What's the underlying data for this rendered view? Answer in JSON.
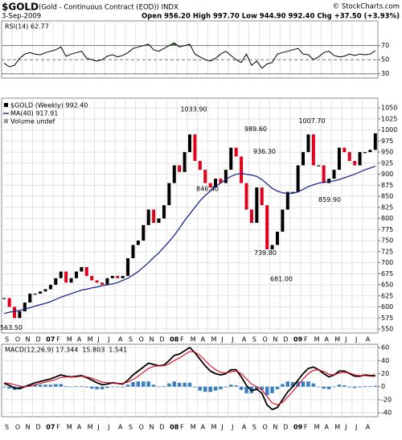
{
  "header": {
    "symbol": "$GOLD",
    "name": "(Gold - Continuous Contract (EOD)) INDX",
    "date": "3-Sep-2009",
    "quote": "Open 956.20  High 997.70  Low 944.90  992.40  Chg +37.50 (+3.93%)",
    "credit": "© StockCharts.com"
  },
  "chart_data": [
    {
      "type": "line",
      "ylim": [
        24,
        105
      ],
      "yticks": [
        70,
        50,
        30
      ],
      "overbought": 70,
      "overbought_color": "#3d7a4d",
      "series": [
        {
          "name": "RSI(14) 62.77",
          "color": "#000000",
          "values": [
            45,
            40,
            42,
            52,
            58,
            60,
            58,
            57,
            60,
            62,
            64,
            68,
            55,
            58,
            60,
            62,
            52,
            50,
            48,
            50,
            55,
            57,
            54,
            56,
            60,
            66,
            68,
            70,
            72,
            64,
            62,
            66,
            70,
            74,
            68,
            70,
            72,
            58,
            54,
            50,
            48,
            52,
            58,
            62,
            56,
            50,
            46,
            58,
            42,
            48,
            38,
            44,
            46,
            58,
            60,
            62,
            64,
            66,
            58,
            57,
            50,
            54,
            60,
            62,
            56,
            54,
            55,
            58,
            56,
            58,
            57,
            58,
            62.77
          ]
        }
      ]
    },
    {
      "type": "candlestick",
      "ylim": [
        541,
        1072
      ],
      "yticks": [
        550,
        575,
        600,
        625,
        650,
        675,
        700,
        725,
        750,
        775,
        800,
        825,
        850,
        875,
        900,
        925,
        950,
        975,
        1000,
        1025,
        1050
      ],
      "grid": true,
      "xticks": [
        "S",
        "O",
        "N",
        "D",
        "07",
        "F",
        "M",
        "A",
        "M",
        "J",
        "J",
        "A",
        "S",
        "O",
        "N",
        "D",
        "08",
        "F",
        "M",
        "A",
        "M",
        "J",
        "J",
        "A",
        "S",
        "O",
        "N",
        "D",
        "09",
        "F",
        "M",
        "A",
        "M",
        "J",
        "J",
        "A"
      ],
      "volume_label": "Volume undef",
      "series": [
        {
          "name": "$GOLD (Weekly) 992.40",
          "color": "#000000",
          "down_color": "#e0001b",
          "values": [
            620,
            600,
            575,
            590,
            610,
            630,
            630,
            635,
            640,
            650,
            665,
            680,
            655,
            665,
            680,
            690,
            670,
            660,
            655,
            650,
            665,
            670,
            665,
            670,
            710,
            740,
            750,
            785,
            820,
            790,
            800,
            830,
            880,
            920,
            905,
            950,
            990,
            930,
            910,
            880,
            870,
            890,
            880,
            910,
            960,
            940,
            880,
            820,
            790,
            870,
            830,
            730,
            740,
            770,
            820,
            860,
            860,
            920,
            950,
            990,
            920,
            920,
            880,
            890,
            910,
            960,
            950,
            930,
            920,
            950,
            950,
            955,
            992.4
          ]
        },
        {
          "name": "MA(40) 917.91",
          "color": "#1c2a8a",
          "values": [
            585,
            588,
            590,
            592,
            595,
            598,
            602,
            605,
            608,
            612,
            617,
            622,
            626,
            630,
            634,
            638,
            640,
            643,
            645,
            648,
            650,
            652,
            655,
            660,
            665,
            672,
            680,
            690,
            700,
            712,
            722,
            735,
            748,
            762,
            778,
            795,
            810,
            825,
            840,
            852,
            862,
            872,
            880,
            888,
            895,
            900,
            902,
            900,
            898,
            895,
            888,
            878,
            868,
            862,
            858,
            856,
            857,
            860,
            866,
            872,
            876,
            880,
            882,
            883,
            885,
            888,
            892,
            896,
            900,
            905,
            910,
            914,
            917.91
          ]
        }
      ],
      "annotations": [
        {
          "label": "563.50",
          "value": 563.5
        },
        {
          "label": "1033.90",
          "value": 1033.9
        },
        {
          "label": "846.40",
          "value": 846.4
        },
        {
          "label": "989.60",
          "value": 989.6
        },
        {
          "label": "936.30",
          "value": 936.3
        },
        {
          "label": "739.80",
          "value": 739.8
        },
        {
          "label": "681.00",
          "value": 681
        },
        {
          "label": "1007.70",
          "value": 1007.7
        },
        {
          "label": "859.90",
          "value": 859.9
        }
      ]
    },
    {
      "type": "macd",
      "ylim": [
        -46,
        65
      ],
      "yticks": [
        60,
        40,
        20,
        0,
        -20,
        -40
      ],
      "grid": true,
      "xticks": [
        "S",
        "O",
        "N",
        "D",
        "07",
        "F",
        "M",
        "A",
        "M",
        "J",
        "J",
        "A",
        "S",
        "O",
        "N",
        "D",
        "08",
        "F",
        "M",
        "A",
        "M",
        "J",
        "J",
        "A",
        "S",
        "O",
        "N",
        "D",
        "09",
        "F",
        "M",
        "A",
        "M",
        "J",
        "J",
        "A"
      ],
      "series": [
        {
          "name": "MACD(12,26,9) 17.344",
          "color": "#000000",
          "values": [
            5,
            2,
            -2,
            -3,
            0,
            3,
            6,
            8,
            10,
            12,
            15,
            18,
            16,
            15,
            16,
            17,
            14,
            10,
            6,
            3,
            4,
            6,
            5,
            4,
            10,
            18,
            24,
            30,
            36,
            34,
            32,
            33,
            40,
            48,
            50,
            55,
            60,
            52,
            42,
            32,
            24,
            20,
            18,
            20,
            26,
            26,
            15,
            2,
            -6,
            -4,
            -10,
            -28,
            -35,
            -32,
            -20,
            -8,
            0,
            10,
            20,
            28,
            30,
            26,
            20,
            15,
            18,
            24,
            24,
            20,
            16,
            16,
            18,
            17,
            17.344
          ]
        },
        {
          "name": "15.803",
          "color": "#e0001b",
          "values": [
            6,
            5,
            3,
            1,
            0,
            1,
            3,
            5,
            7,
            9,
            11,
            14,
            15,
            15,
            15,
            16,
            15,
            13,
            10,
            7,
            6,
            6,
            5,
            5,
            7,
            11,
            16,
            22,
            28,
            31,
            32,
            32,
            35,
            40,
            44,
            49,
            54,
            53,
            48,
            40,
            32,
            26,
            22,
            21,
            23,
            24,
            20,
            12,
            4,
            0,
            -5,
            -15,
            -25,
            -28,
            -24,
            -16,
            -7,
            2,
            12,
            20,
            25,
            26,
            23,
            19,
            18,
            21,
            22,
            21,
            18,
            17,
            17,
            16,
            15.803
          ]
        },
        {
          "name": "1.541",
          "color": "#3a7fc0",
          "kind": "bar",
          "values": [
            -1,
            -3,
            -5,
            -4,
            0,
            2,
            3,
            3,
            3,
            3,
            4,
            4,
            1,
            0,
            1,
            1,
            -1,
            -3,
            -4,
            -4,
            -2,
            0,
            0,
            -1,
            3,
            7,
            8,
            8,
            8,
            3,
            0,
            1,
            5,
            8,
            6,
            6,
            6,
            -1,
            -6,
            -8,
            -8,
            -6,
            -4,
            -1,
            3,
            2,
            -5,
            -10,
            -10,
            -4,
            -5,
            -13,
            -10,
            -4,
            4,
            8,
            7,
            8,
            8,
            8,
            5,
            0,
            -3,
            -4,
            0,
            3,
            2,
            -1,
            -2,
            -1,
            1,
            1,
            1.541
          ]
        }
      ]
    }
  ]
}
